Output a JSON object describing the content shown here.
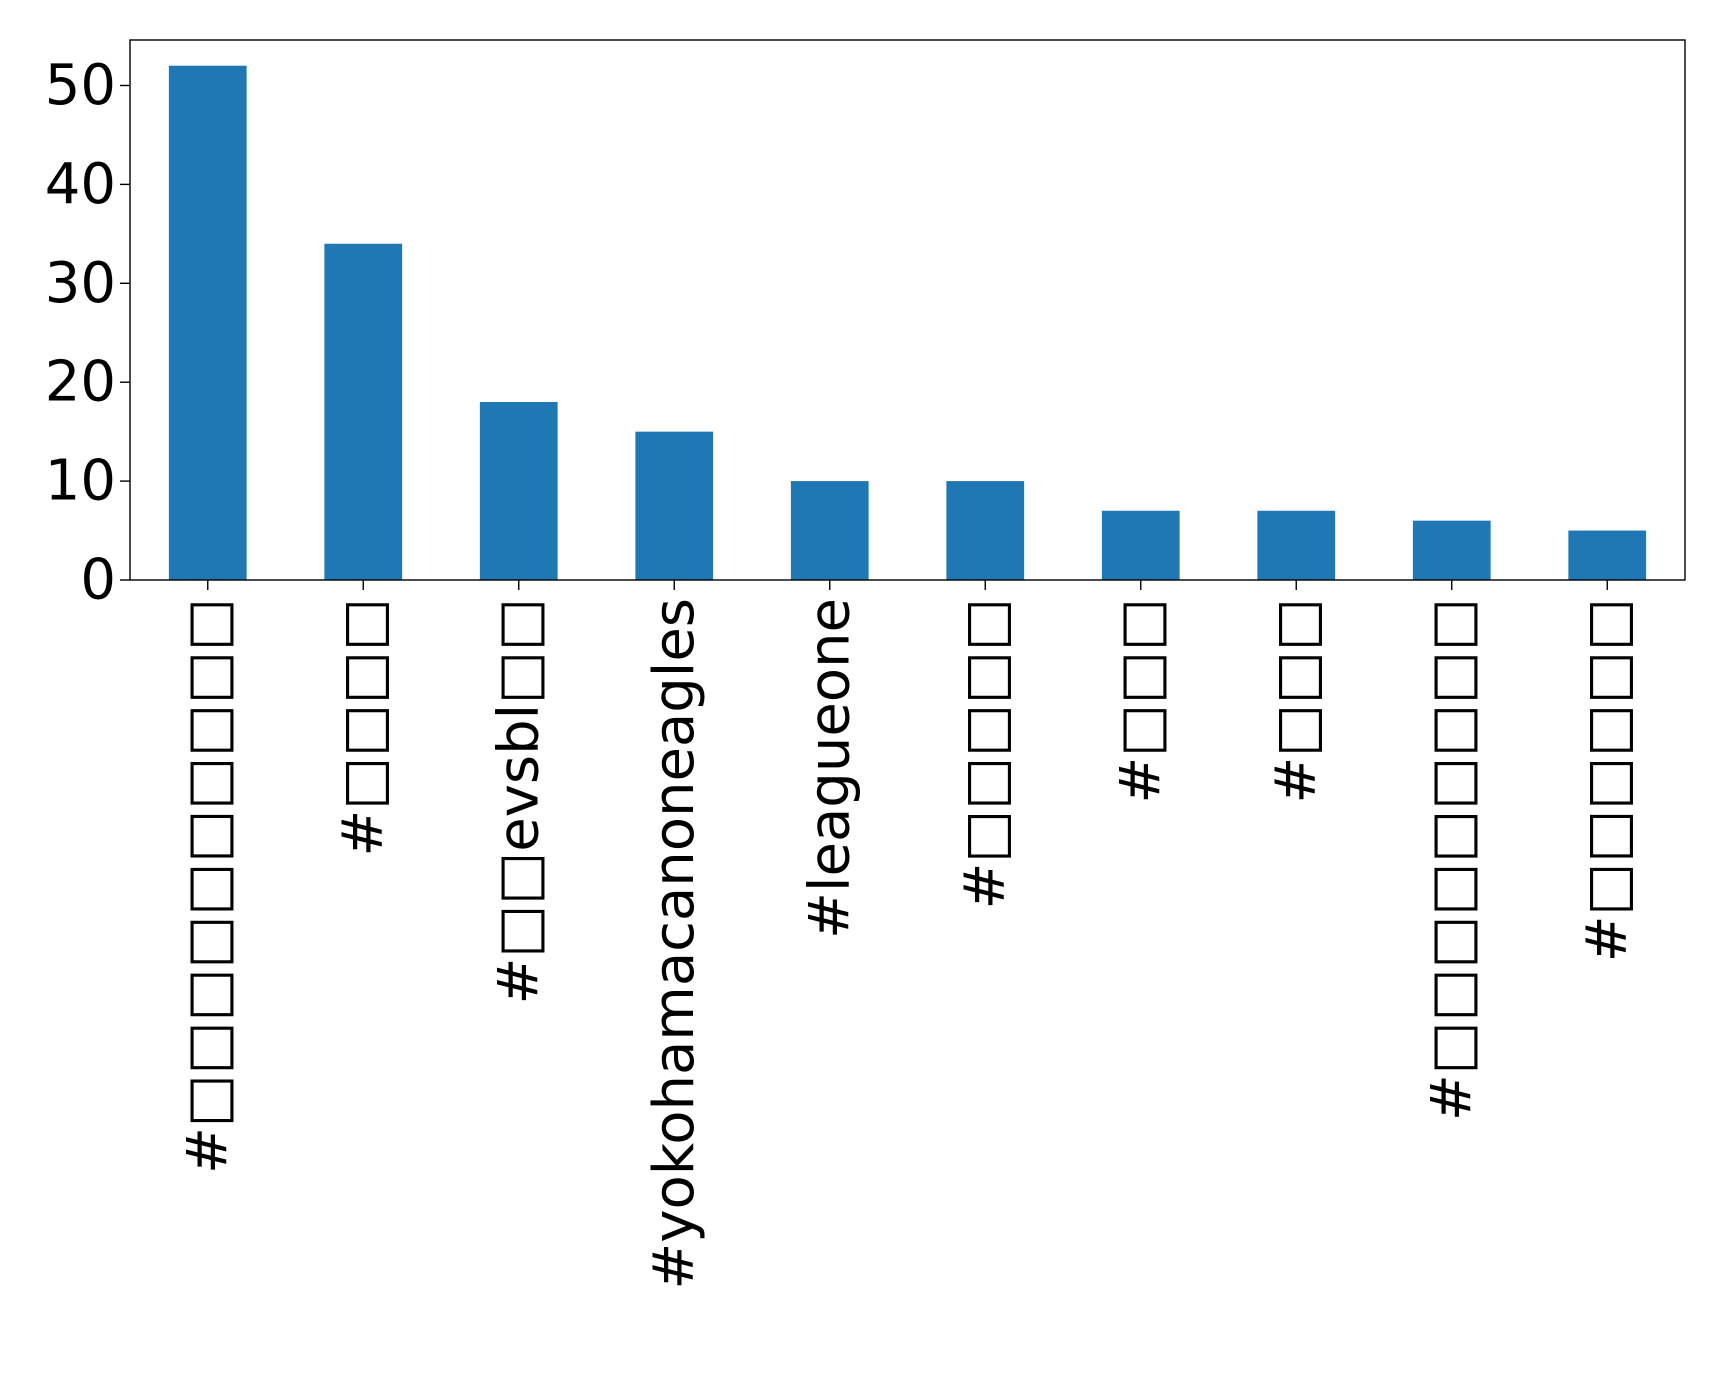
{
  "chart_data": {
    "type": "bar",
    "title": "",
    "xlabel": "",
    "ylabel": "",
    "categories": [
      "#□□□□□□□□□□",
      "#□□□□",
      "#□□evsbl□□",
      "#yokohamacanoneagles",
      "#leagueone",
      "#□□□□□",
      "#□□□",
      "#□□□",
      "#□□□□□□□□□",
      "#□□□□□□"
    ],
    "values": [
      52,
      34,
      18,
      15,
      10,
      10,
      7,
      7,
      6,
      5
    ],
    "ylim": [
      0,
      54.6
    ],
    "yticks": [
      0,
      10,
      20,
      30,
      40,
      50
    ],
    "grid": false,
    "legend": "none",
    "bar_color": "#1f77b4"
  }
}
